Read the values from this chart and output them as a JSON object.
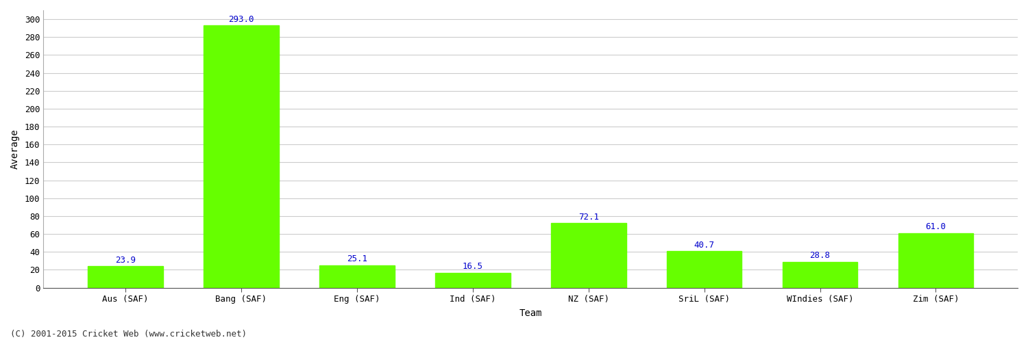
{
  "categories": [
    "Aus (SAF)",
    "Bang (SAF)",
    "Eng (SAF)",
    "Ind (SAF)",
    "NZ (SAF)",
    "SriL (SAF)",
    "WIndies (SAF)",
    "Zim (SAF)"
  ],
  "values": [
    23.9,
    293.0,
    25.1,
    16.5,
    72.1,
    40.7,
    28.8,
    61.0
  ],
  "bar_color": "#66ff00",
  "bar_edge_color": "#66ff00",
  "value_color": "#0000cc",
  "ylabel": "Average",
  "xlabel": "Team",
  "ylim": [
    0,
    310
  ],
  "yticks": [
    0,
    20,
    40,
    60,
    80,
    100,
    120,
    140,
    160,
    180,
    200,
    220,
    240,
    260,
    280,
    300
  ],
  "grid_color": "#cccccc",
  "background_color": "#ffffff",
  "footnote": "(C) 2001-2015 Cricket Web (www.cricketweb.net)",
  "label_fontsize": 10,
  "tick_fontsize": 9,
  "value_fontsize": 9,
  "footnote_fontsize": 9,
  "bar_width": 0.65
}
